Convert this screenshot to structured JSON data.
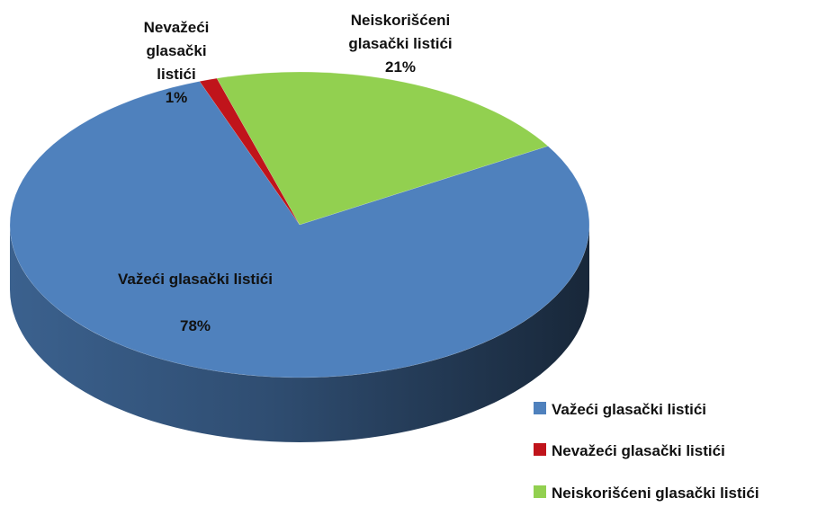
{
  "chart_data": {
    "type": "pie",
    "categories": [
      "Važeći glasački listići",
      "Nevažeći glasački listići",
      "Neiskorišćeni glasački listići"
    ],
    "values": [
      78,
      1,
      21
    ],
    "value_labels": [
      "78%",
      "1%",
      "21%"
    ],
    "colors": [
      "#4f81bd",
      "#c0141b",
      "#92d050"
    ],
    "legend": "right"
  }
}
